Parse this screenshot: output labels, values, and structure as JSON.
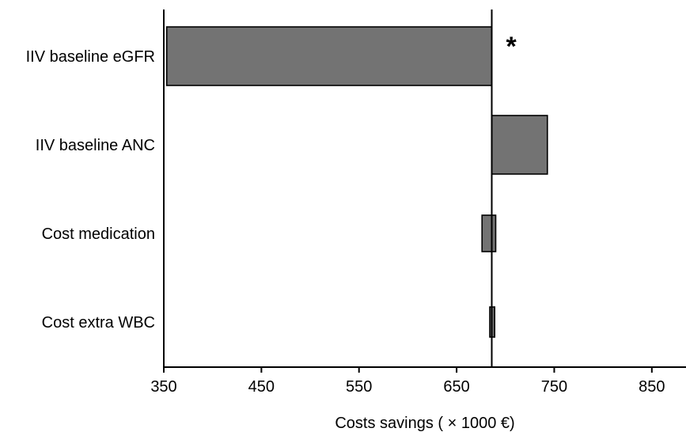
{
  "chart_data": {
    "type": "bar",
    "orientation": "horizontal",
    "title": "",
    "xlabel": "Costs savings ( × 1000 €)",
    "ylabel": "",
    "baseline": 686,
    "xlim": [
      350,
      885
    ],
    "xticks": [
      350,
      450,
      550,
      650,
      750,
      850
    ],
    "grid": false,
    "categories": [
      "IIV baseline eGFR",
      "IIV baseline ANC",
      "Cost medication",
      "Cost extra WBC"
    ],
    "bars": [
      {
        "label": "IIV baseline eGFR",
        "low": 353,
        "high": 686
      },
      {
        "label": "IIV baseline ANC",
        "low": 686,
        "high": 743
      },
      {
        "label": "Cost medication",
        "low": 676,
        "high": 690
      },
      {
        "label": "Cost extra WBC",
        "low": 684,
        "high": 689
      }
    ],
    "annotations": [
      {
        "text": "*",
        "category": "IIV baseline eGFR",
        "x": 706
      }
    ],
    "colors": {
      "bar_fill": "#737373",
      "bar_stroke": "#000000",
      "axis": "#000000"
    }
  }
}
